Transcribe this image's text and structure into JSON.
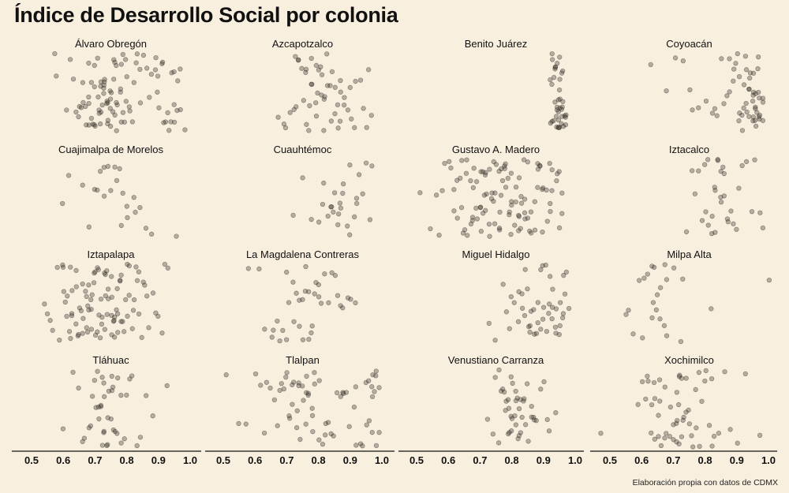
{
  "chart_data": {
    "type": "scatter",
    "title": "Índice de Desarrollo Social por colonia",
    "caption": "Elaboración propia con datos de CDMX",
    "xlabel": "",
    "ylabel": "",
    "xlim": [
      0.45,
      1.01
    ],
    "xticks": [
      "0.5",
      "0.6",
      "0.7",
      "0.8",
      "0.9",
      "1.0"
    ],
    "xtick_values": [
      0.5,
      0.6,
      0.7,
      0.8,
      0.9,
      1.0
    ],
    "grid": false,
    "colors": {
      "point_fill": "#3a342c",
      "point_stroke": "#2a241e",
      "background": "#f9efdf"
    },
    "panels": [
      {
        "name": "Álvaro Obregón",
        "values": [
          0.57,
          0.58,
          0.61,
          0.63,
          0.64,
          0.65,
          0.65,
          0.66,
          0.66,
          0.67,
          0.67,
          0.68,
          0.68,
          0.68,
          0.69,
          0.69,
          0.69,
          0.7,
          0.7,
          0.7,
          0.71,
          0.71,
          0.71,
          0.72,
          0.72,
          0.72,
          0.72,
          0.73,
          0.73,
          0.73,
          0.73,
          0.74,
          0.74,
          0.74,
          0.74,
          0.75,
          0.75,
          0.75,
          0.75,
          0.76,
          0.76,
          0.76,
          0.76,
          0.77,
          0.77,
          0.77,
          0.78,
          0.78,
          0.78,
          0.79,
          0.79,
          0.79,
          0.8,
          0.8,
          0.81,
          0.81,
          0.82,
          0.82,
          0.83,
          0.83,
          0.84,
          0.85,
          0.86,
          0.87,
          0.88,
          0.89,
          0.89,
          0.9,
          0.9,
          0.91,
          0.91,
          0.92,
          0.92,
          0.93,
          0.93,
          0.94,
          0.94,
          0.95,
          0.95,
          0.96,
          0.96,
          0.97,
          0.97,
          0.98,
          0.66,
          0.7,
          0.74,
          0.78,
          0.71,
          0.75,
          0.73,
          0.77,
          0.68,
          0.72,
          0.76,
          0.8,
          0.84,
          0.9,
          0.95,
          0.62
        ]
      },
      {
        "name": "Azcapotzalco",
        "values": [
          0.67,
          0.69,
          0.7,
          0.71,
          0.72,
          0.73,
          0.74,
          0.74,
          0.75,
          0.75,
          0.76,
          0.76,
          0.77,
          0.77,
          0.78,
          0.78,
          0.79,
          0.79,
          0.8,
          0.8,
          0.81,
          0.81,
          0.82,
          0.82,
          0.83,
          0.83,
          0.84,
          0.84,
          0.85,
          0.85,
          0.86,
          0.86,
          0.87,
          0.87,
          0.88,
          0.88,
          0.89,
          0.9,
          0.9,
          0.91,
          0.92,
          0.93,
          0.94,
          0.95,
          0.96,
          0.97,
          0.76,
          0.79,
          0.81,
          0.84,
          0.87,
          0.73,
          0.78,
          0.82
        ]
      },
      {
        "name": "Benito Juárez",
        "values": [
          0.92,
          0.92,
          0.93,
          0.93,
          0.93,
          0.93,
          0.94,
          0.94,
          0.94,
          0.94,
          0.94,
          0.94,
          0.95,
          0.95,
          0.95,
          0.95,
          0.95,
          0.95,
          0.95,
          0.96,
          0.96,
          0.96,
          0.96,
          0.96,
          0.96,
          0.97,
          0.97,
          0.97,
          0.97,
          0.93,
          0.94,
          0.95,
          0.96,
          0.94,
          0.95,
          0.93,
          0.96,
          0.95,
          0.94,
          0.95
        ]
      },
      {
        "name": "Coyoacán",
        "values": [
          0.63,
          0.68,
          0.71,
          0.73,
          0.75,
          0.76,
          0.78,
          0.8,
          0.82,
          0.83,
          0.84,
          0.85,
          0.86,
          0.87,
          0.88,
          0.88,
          0.89,
          0.89,
          0.9,
          0.9,
          0.91,
          0.91,
          0.92,
          0.92,
          0.92,
          0.93,
          0.93,
          0.93,
          0.94,
          0.94,
          0.94,
          0.95,
          0.95,
          0.95,
          0.95,
          0.96,
          0.96,
          0.96,
          0.96,
          0.97,
          0.97,
          0.97,
          0.97,
          0.97,
          0.98,
          0.98,
          0.98,
          0.93,
          0.94,
          0.95,
          0.96,
          0.97,
          0.92,
          0.91,
          0.95,
          0.96,
          0.94,
          0.97
        ]
      },
      {
        "name": "Cuajimalpa de Morelos",
        "values": [
          0.6,
          0.62,
          0.66,
          0.68,
          0.7,
          0.71,
          0.72,
          0.73,
          0.74,
          0.75,
          0.76,
          0.77,
          0.78,
          0.79,
          0.8,
          0.8,
          0.82,
          0.83,
          0.84,
          0.86,
          0.88,
          0.96,
          0.73,
          0.78
        ]
      },
      {
        "name": "Cuauhtémoc",
        "values": [
          0.72,
          0.75,
          0.78,
          0.8,
          0.81,
          0.82,
          0.83,
          0.84,
          0.85,
          0.86,
          0.86,
          0.87,
          0.87,
          0.88,
          0.89,
          0.9,
          0.91,
          0.92,
          0.93,
          0.94,
          0.95,
          0.96,
          0.97,
          0.84,
          0.88,
          0.9,
          0.85,
          0.92
        ]
      },
      {
        "name": "Gustavo A. Madero",
        "values": [
          0.51,
          0.54,
          0.56,
          0.57,
          0.58,
          0.59,
          0.6,
          0.61,
          0.62,
          0.63,
          0.63,
          0.64,
          0.64,
          0.65,
          0.65,
          0.66,
          0.66,
          0.67,
          0.67,
          0.68,
          0.68,
          0.68,
          0.69,
          0.69,
          0.69,
          0.7,
          0.7,
          0.7,
          0.71,
          0.71,
          0.71,
          0.72,
          0.72,
          0.72,
          0.73,
          0.73,
          0.73,
          0.74,
          0.74,
          0.74,
          0.75,
          0.75,
          0.75,
          0.76,
          0.76,
          0.76,
          0.77,
          0.77,
          0.77,
          0.78,
          0.78,
          0.78,
          0.79,
          0.79,
          0.79,
          0.8,
          0.8,
          0.8,
          0.81,
          0.81,
          0.81,
          0.82,
          0.82,
          0.82,
          0.83,
          0.83,
          0.83,
          0.84,
          0.84,
          0.84,
          0.85,
          0.85,
          0.86,
          0.86,
          0.87,
          0.87,
          0.88,
          0.88,
          0.89,
          0.89,
          0.9,
          0.9,
          0.91,
          0.91,
          0.92,
          0.92,
          0.93,
          0.93,
          0.94,
          0.94,
          0.95,
          0.95,
          0.96,
          0.96,
          0.62,
          0.66,
          0.7,
          0.74,
          0.78,
          0.82,
          0.86,
          0.9,
          0.64,
          0.68,
          0.72,
          0.76,
          0.8,
          0.84,
          0.88,
          0.92
        ]
      },
      {
        "name": "Iztacalco",
        "values": [
          0.74,
          0.76,
          0.77,
          0.78,
          0.79,
          0.8,
          0.81,
          0.81,
          0.82,
          0.82,
          0.83,
          0.83,
          0.84,
          0.84,
          0.85,
          0.85,
          0.86,
          0.86,
          0.87,
          0.87,
          0.88,
          0.89,
          0.9,
          0.91,
          0.92,
          0.93,
          0.95,
          0.96,
          0.97,
          0.98,
          0.83,
          0.85,
          0.8,
          0.86
        ]
      },
      {
        "name": "Iztapalapa",
        "values": [
          0.54,
          0.55,
          0.56,
          0.57,
          0.58,
          0.59,
          0.6,
          0.6,
          0.61,
          0.61,
          0.62,
          0.62,
          0.63,
          0.63,
          0.64,
          0.64,
          0.65,
          0.65,
          0.66,
          0.66,
          0.66,
          0.67,
          0.67,
          0.67,
          0.68,
          0.68,
          0.68,
          0.69,
          0.69,
          0.69,
          0.7,
          0.7,
          0.7,
          0.71,
          0.71,
          0.71,
          0.72,
          0.72,
          0.72,
          0.73,
          0.73,
          0.73,
          0.74,
          0.74,
          0.74,
          0.75,
          0.75,
          0.75,
          0.76,
          0.76,
          0.76,
          0.77,
          0.77,
          0.77,
          0.78,
          0.78,
          0.78,
          0.79,
          0.79,
          0.8,
          0.8,
          0.81,
          0.81,
          0.82,
          0.82,
          0.83,
          0.83,
          0.84,
          0.84,
          0.85,
          0.85,
          0.86,
          0.86,
          0.87,
          0.88,
          0.89,
          0.9,
          0.91,
          0.92,
          0.93,
          0.6,
          0.61,
          0.62,
          0.64,
          0.68,
          0.72,
          0.74,
          0.76,
          0.78,
          0.66,
          0.7,
          0.73,
          0.75,
          0.77,
          0.8,
          0.63,
          0.69,
          0.71,
          0.65,
          0.82
        ]
      },
      {
        "name": "La Magdalena Contreras",
        "values": [
          0.58,
          0.61,
          0.63,
          0.65,
          0.66,
          0.67,
          0.68,
          0.69,
          0.7,
          0.71,
          0.72,
          0.72,
          0.73,
          0.74,
          0.75,
          0.75,
          0.76,
          0.76,
          0.77,
          0.78,
          0.78,
          0.79,
          0.8,
          0.8,
          0.81,
          0.82,
          0.83,
          0.84,
          0.85,
          0.86,
          0.87,
          0.88,
          0.89,
          0.9,
          0.92,
          0.74,
          0.77,
          0.79,
          0.7
        ]
      },
      {
        "name": "Miguel Hidalgo",
        "values": [
          0.73,
          0.75,
          0.77,
          0.78,
          0.79,
          0.8,
          0.81,
          0.82,
          0.83,
          0.83,
          0.84,
          0.84,
          0.85,
          0.85,
          0.86,
          0.86,
          0.87,
          0.87,
          0.88,
          0.88,
          0.89,
          0.89,
          0.9,
          0.9,
          0.91,
          0.91,
          0.92,
          0.92,
          0.93,
          0.93,
          0.94,
          0.94,
          0.95,
          0.95,
          0.96,
          0.96,
          0.97,
          0.97,
          0.98,
          0.93,
          0.94,
          0.95,
          0.96,
          0.86,
          0.88,
          0.9,
          0.82,
          0.92
        ]
      },
      {
        "name": "Milpa Alta",
        "values": [
          0.55,
          0.56,
          0.57,
          0.59,
          0.6,
          0.61,
          0.62,
          0.63,
          0.63,
          0.64,
          0.64,
          0.65,
          0.65,
          0.66,
          0.66,
          0.67,
          0.67,
          0.68,
          0.68,
          0.7,
          0.72,
          0.73,
          0.82,
          1.0
        ]
      },
      {
        "name": "Tláhuac",
        "values": [
          0.6,
          0.63,
          0.65,
          0.66,
          0.67,
          0.68,
          0.69,
          0.69,
          0.7,
          0.7,
          0.71,
          0.71,
          0.72,
          0.72,
          0.72,
          0.73,
          0.73,
          0.73,
          0.74,
          0.74,
          0.74,
          0.75,
          0.75,
          0.76,
          0.76,
          0.77,
          0.77,
          0.78,
          0.78,
          0.79,
          0.8,
          0.81,
          0.82,
          0.83,
          0.84,
          0.86,
          0.88,
          0.93,
          0.72,
          0.73,
          0.74,
          0.71,
          0.75,
          0.76
        ]
      },
      {
        "name": "Tlalpan",
        "values": [
          0.51,
          0.55,
          0.57,
          0.6,
          0.62,
          0.63,
          0.64,
          0.65,
          0.66,
          0.67,
          0.68,
          0.69,
          0.7,
          0.7,
          0.71,
          0.71,
          0.72,
          0.72,
          0.73,
          0.73,
          0.74,
          0.74,
          0.75,
          0.75,
          0.76,
          0.76,
          0.77,
          0.77,
          0.78,
          0.78,
          0.79,
          0.79,
          0.8,
          0.8,
          0.81,
          0.82,
          0.83,
          0.84,
          0.85,
          0.86,
          0.87,
          0.88,
          0.89,
          0.9,
          0.91,
          0.92,
          0.93,
          0.94,
          0.95,
          0.96,
          0.96,
          0.97,
          0.97,
          0.97,
          0.98,
          0.98,
          0.98,
          0.99,
          0.99,
          0.72,
          0.74,
          0.76,
          0.78,
          0.95,
          0.97,
          0.98,
          0.68,
          0.82,
          0.88,
          0.92
        ]
      },
      {
        "name": "Venustiano Carranza",
        "values": [
          0.72,
          0.74,
          0.75,
          0.76,
          0.76,
          0.77,
          0.77,
          0.78,
          0.78,
          0.78,
          0.79,
          0.79,
          0.79,
          0.8,
          0.8,
          0.8,
          0.8,
          0.81,
          0.81,
          0.81,
          0.82,
          0.82,
          0.82,
          0.83,
          0.83,
          0.83,
          0.84,
          0.84,
          0.85,
          0.85,
          0.86,
          0.86,
          0.87,
          0.87,
          0.88,
          0.89,
          0.9,
          0.91,
          0.92,
          0.94,
          0.8,
          0.81,
          0.79,
          0.82,
          0.84
        ]
      },
      {
        "name": "Xochimilco",
        "values": [
          0.47,
          0.59,
          0.6,
          0.61,
          0.62,
          0.62,
          0.63,
          0.63,
          0.64,
          0.64,
          0.65,
          0.65,
          0.66,
          0.66,
          0.67,
          0.67,
          0.68,
          0.69,
          0.69,
          0.7,
          0.7,
          0.71,
          0.71,
          0.71,
          0.72,
          0.72,
          0.72,
          0.73,
          0.73,
          0.73,
          0.74,
          0.74,
          0.75,
          0.75,
          0.76,
          0.76,
          0.77,
          0.77,
          0.78,
          0.78,
          0.79,
          0.8,
          0.8,
          0.81,
          0.82,
          0.82,
          0.83,
          0.84,
          0.86,
          0.88,
          0.9,
          0.93,
          0.97,
          0.72,
          0.73,
          0.71,
          0.64,
          0.66
        ]
      }
    ]
  }
}
